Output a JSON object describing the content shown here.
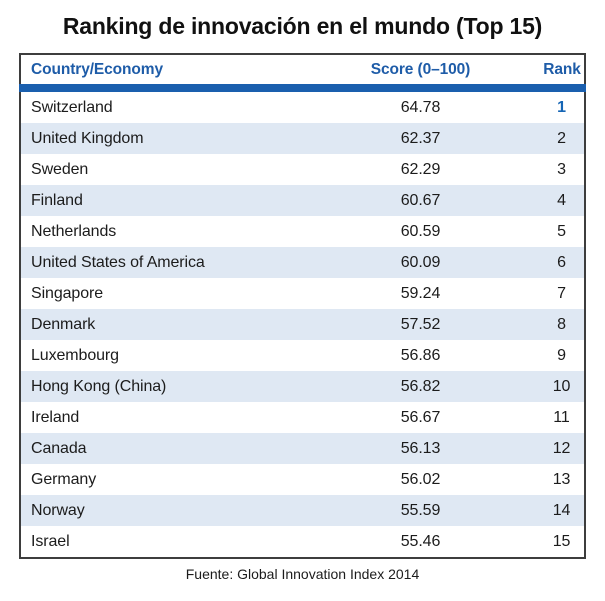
{
  "chart_data": {
    "type": "table",
    "title": "Ranking de innovación en el mundo (Top 15)",
    "columns": [
      "Country/Economy",
      "Score (0–100)",
      "Rank"
    ],
    "rows": [
      [
        "Switzerland",
        64.78,
        1
      ],
      [
        "United Kingdom",
        62.37,
        2
      ],
      [
        "Sweden",
        62.29,
        3
      ],
      [
        "Finland",
        60.67,
        4
      ],
      [
        "Netherlands",
        60.59,
        5
      ],
      [
        "United States of America",
        60.09,
        6
      ],
      [
        "Singapore",
        59.24,
        7
      ],
      [
        "Denmark",
        57.52,
        8
      ],
      [
        "Luxembourg",
        56.86,
        9
      ],
      [
        "Hong Kong (China)",
        56.82,
        10
      ],
      [
        "Ireland",
        56.67,
        11
      ],
      [
        "Canada",
        56.13,
        12
      ],
      [
        "Germany",
        56.02,
        13
      ],
      [
        "Norway",
        55.59,
        14
      ],
      [
        "Israel",
        55.46,
        15
      ]
    ],
    "source": "Fuente: Global Innovation Index 2014",
    "legend_position": "none",
    "grid": false
  },
  "colors": {
    "header_text": "#1e5ca8",
    "header_bar": "#1a5fae",
    "row_stripe": "#dfe8f3",
    "rank_first": "#1565b5",
    "table_border": "#3d3d3d"
  }
}
